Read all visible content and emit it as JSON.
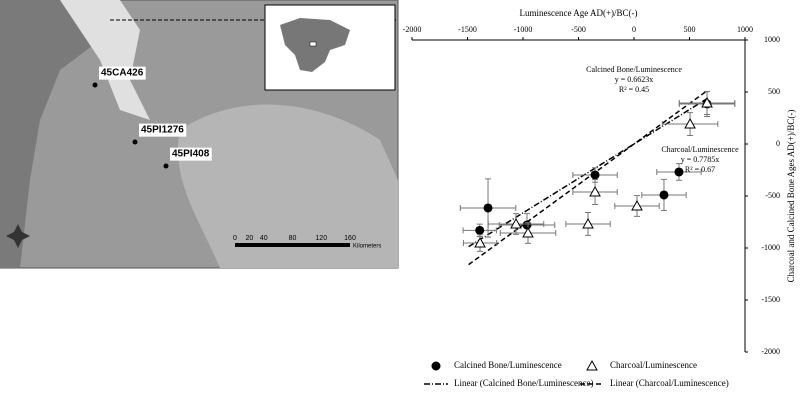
{
  "map": {
    "sites": [
      "45CA426",
      "45PI1276",
      "45PI408"
    ],
    "scale": [
      0,
      20,
      40,
      80,
      120,
      160
    ],
    "scale_unit": "Kilometers"
  },
  "chart_data": {
    "type": "scatter",
    "xlabel": "Luminescence Age AD(+)/BC(-)",
    "ylabel": "Charcoal and Calcined Bone Ages AD(+)/BC(-)",
    "xlim": [
      -2000,
      1000
    ],
    "xticks": [
      -2000,
      -1500,
      -1000,
      -500,
      0,
      500,
      1000
    ],
    "ylim": [
      -2000,
      1000
    ],
    "yticks": [
      -2000,
      -1500,
      -1000,
      -500,
      0,
      500,
      1000
    ],
    "series": [
      {
        "name": "Calcined Bone/Luminescence",
        "color": "#000000",
        "marker": "circle",
        "x": [
          -1390,
          -1315,
          -964,
          -351,
          405,
          270,
          658
        ],
        "values": [
          -830,
          -615,
          -779,
          -298,
          -269,
          -490,
          385
        ],
        "xerr": [
          150,
          250,
          250,
          200,
          200,
          200,
          250
        ],
        "yerr": [
          60,
          280,
          110,
          70,
          80,
          150,
          120
        ]
      },
      {
        "name": "Charcoal/Luminescence",
        "color": "#000000",
        "marker": "triangle",
        "x": [
          -1387,
          -1063,
          -955,
          -414,
          -351,
          27,
          505,
          658
        ],
        "values": [
          -952,
          -769,
          -856,
          -769,
          -462,
          -596,
          192,
          394
        ],
        "xerr": [
          150,
          250,
          250,
          200,
          200,
          200,
          250,
          250
        ],
        "yerr": [
          80,
          100,
          100,
          110,
          120,
          100,
          110,
          110
        ]
      }
    ],
    "trendlines": [
      {
        "name": "Linear (Calcined Bone/Luminescence)",
        "slope": 0.6623,
        "dash": "6 2 1 2"
      },
      {
        "name": "Linear (Charcoal/Luminescence)",
        "slope": 0.7785,
        "dash": "5 3"
      }
    ],
    "annotations": [
      {
        "label": "Calcined Bone/Luminescence",
        "equation": "y = 0.6623x",
        "r2": "R² = 0.45"
      },
      {
        "label": "Charcoal/Luminescence",
        "equation": "y = 0.7785x",
        "r2": "R² = 0.67"
      }
    ]
  }
}
